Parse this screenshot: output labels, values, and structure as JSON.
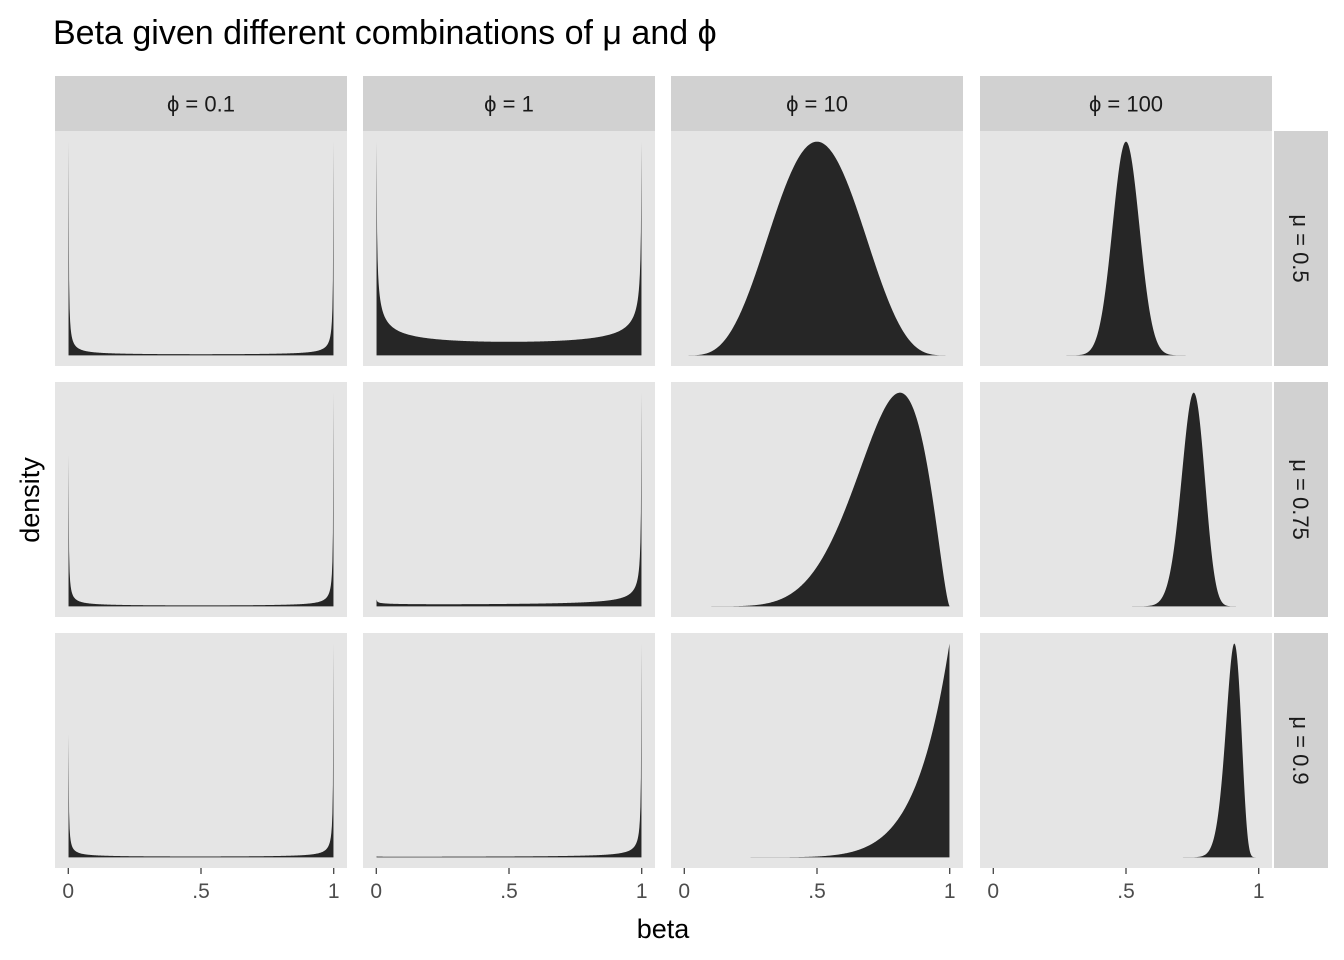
{
  "chart_data": {
    "type": "area",
    "title": "Beta given different combinations of μ and ϕ",
    "xlabel": "beta",
    "ylabel": "density",
    "x_ticks": [
      "0",
      ".5",
      "1"
    ],
    "xlim": [
      0,
      1
    ],
    "facet_columns": [
      {
        "label": "ϕ = 0.1",
        "phi": 0.1
      },
      {
        "label": "ϕ = 1",
        "phi": 1
      },
      {
        "label": "ϕ = 10",
        "phi": 10
      },
      {
        "label": "ϕ = 100",
        "phi": 100
      }
    ],
    "facet_rows": [
      {
        "label": "μ = 0.5",
        "mu": 0.5
      },
      {
        "label": "μ = 0.75",
        "mu": 0.75
      },
      {
        "label": "μ = 0.9",
        "mu": 0.9
      }
    ],
    "distribution": "beta(alpha = mu * phi, beta = (1 - mu) * phi)",
    "y_scale": "free per panel",
    "fill_color": "#262626",
    "panel_background": "#e5e5e5",
    "strip_background": "#d1d1d1",
    "grid": false
  }
}
